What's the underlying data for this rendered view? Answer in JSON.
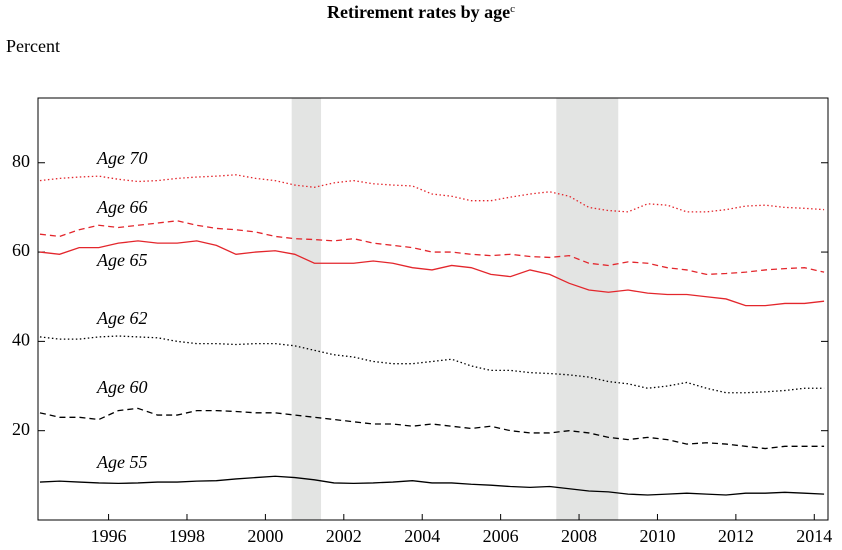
{
  "chart_data": {
    "type": "line",
    "title": "Retirement rates by age",
    "title_note": "c",
    "y_label": "Percent",
    "x": [
      1994.75,
      1995.25,
      1995.75,
      1996.25,
      1996.75,
      1997.25,
      1997.75,
      1998.25,
      1998.75,
      1999.25,
      1999.75,
      2000.25,
      2000.75,
      2001.25,
      2001.75,
      2002.25,
      2002.75,
      2003.25,
      2003.75,
      2004.25,
      2004.75,
      2005.25,
      2005.75,
      2006.25,
      2006.75,
      2007.25,
      2007.75,
      2008.25,
      2008.75,
      2009.25,
      2009.75,
      2010.25,
      2010.75,
      2011.25,
      2011.75,
      2012.25,
      2012.75,
      2013.25,
      2013.75,
      2014.25,
      2014.75
    ],
    "xlim": [
      1994.7,
      2014.85
    ],
    "xticks": [
      {
        "value": 1996.5,
        "label": "1996"
      },
      {
        "value": 1998.5,
        "label": "1998"
      },
      {
        "value": 2000.5,
        "label": "2000"
      },
      {
        "value": 2002.5,
        "label": "2002"
      },
      {
        "value": 2004.5,
        "label": "2004"
      },
      {
        "value": 2006.5,
        "label": "2006"
      },
      {
        "value": 2008.5,
        "label": "2008"
      },
      {
        "value": 2010.5,
        "label": "2010"
      },
      {
        "value": 2012.5,
        "label": "2012"
      },
      {
        "value": 2014.5,
        "label": "2014"
      }
    ],
    "ylim": [
      0,
      94.5
    ],
    "yticks": [
      20,
      40,
      60,
      80
    ],
    "shaded_periods": [
      [
        2001.17,
        2001.92
      ],
      [
        2007.92,
        2009.5
      ]
    ],
    "shade_color": "#e3e4e3",
    "series": [
      {
        "name": "Age 70",
        "color": "#e3262c",
        "style": "dotted",
        "values": [
          76,
          76.5,
          76.8,
          77,
          76.3,
          75.8,
          76,
          76.5,
          76.8,
          77,
          77.3,
          76.5,
          76,
          75,
          74.5,
          75.5,
          76,
          75.3,
          75,
          74.8,
          73,
          72.5,
          71.5,
          71.5,
          72.3,
          73,
          73.5,
          72.5,
          70,
          69.3,
          69,
          70.8,
          70.5,
          69,
          69,
          69.5,
          70.3,
          70.5,
          70,
          69.8,
          69.5
        ]
      },
      {
        "name": "Age 66",
        "color": "#e3262c",
        "style": "dashed",
        "values": [
          64,
          63.5,
          65,
          66,
          65.5,
          66,
          66.5,
          67,
          66,
          65.3,
          65,
          64.5,
          63.5,
          63,
          62.8,
          62.5,
          63,
          62,
          61.5,
          61,
          60,
          60,
          59.5,
          59.2,
          59.5,
          59,
          58.8,
          59.2,
          57.5,
          57,
          57.8,
          57.5,
          56.5,
          56,
          55,
          55.2,
          55.5,
          56,
          56.3,
          56.5,
          55.5
        ]
      },
      {
        "name": "Age 65",
        "color": "#e3262c",
        "style": "solid",
        "values": [
          60,
          59.5,
          61,
          61,
          62,
          62.5,
          62,
          62,
          62.5,
          61.5,
          59.5,
          60,
          60.3,
          59.5,
          57.5,
          57.5,
          57.5,
          58,
          57.5,
          56.5,
          56,
          57,
          56.5,
          55,
          54.5,
          56,
          55,
          53,
          51.5,
          51,
          51.5,
          50.8,
          50.5,
          50.5,
          50,
          49.5,
          48,
          48,
          48.5,
          48.5,
          49
        ]
      },
      {
        "name": "Age 62",
        "color": "#000000",
        "style": "dotted",
        "values": [
          41,
          40.5,
          40.5,
          41,
          41.2,
          41,
          40.8,
          40,
          39.5,
          39.5,
          39.3,
          39.5,
          39.5,
          39,
          38,
          37,
          36.5,
          35.5,
          35,
          35,
          35.5,
          36,
          34.5,
          33.5,
          33.5,
          33,
          32.8,
          32.5,
          32,
          31,
          30.5,
          29.5,
          30,
          30.8,
          29.5,
          28.5,
          28.5,
          28.7,
          29,
          29.5,
          29.5
        ]
      },
      {
        "name": "Age 60",
        "color": "#000000",
        "style": "dashed",
        "values": [
          24,
          23,
          23,
          22.5,
          24.5,
          25,
          23.5,
          23.5,
          24.5,
          24.5,
          24.3,
          24,
          24,
          23.5,
          23,
          22.5,
          22,
          21.5,
          21.5,
          21,
          21.5,
          21,
          20.5,
          21,
          20,
          19.5,
          19.5,
          20,
          19.5,
          18.5,
          18,
          18.5,
          18,
          17,
          17.3,
          17,
          16.5,
          16,
          16.5,
          16.5,
          16.5
        ]
      },
      {
        "name": "Age 55",
        "color": "#000000",
        "style": "solid",
        "values": [
          8.5,
          8.7,
          8.5,
          8.3,
          8.2,
          8.3,
          8.5,
          8.5,
          8.7,
          8.8,
          9.2,
          9.5,
          9.8,
          9.5,
          9,
          8.3,
          8.2,
          8.3,
          8.5,
          8.8,
          8.3,
          8.3,
          8,
          7.8,
          7.5,
          7.3,
          7.5,
          7,
          6.5,
          6.3,
          5.8,
          5.6,
          5.8,
          6,
          5.8,
          5.6,
          6,
          6,
          6.2,
          6,
          5.8
        ]
      }
    ]
  }
}
